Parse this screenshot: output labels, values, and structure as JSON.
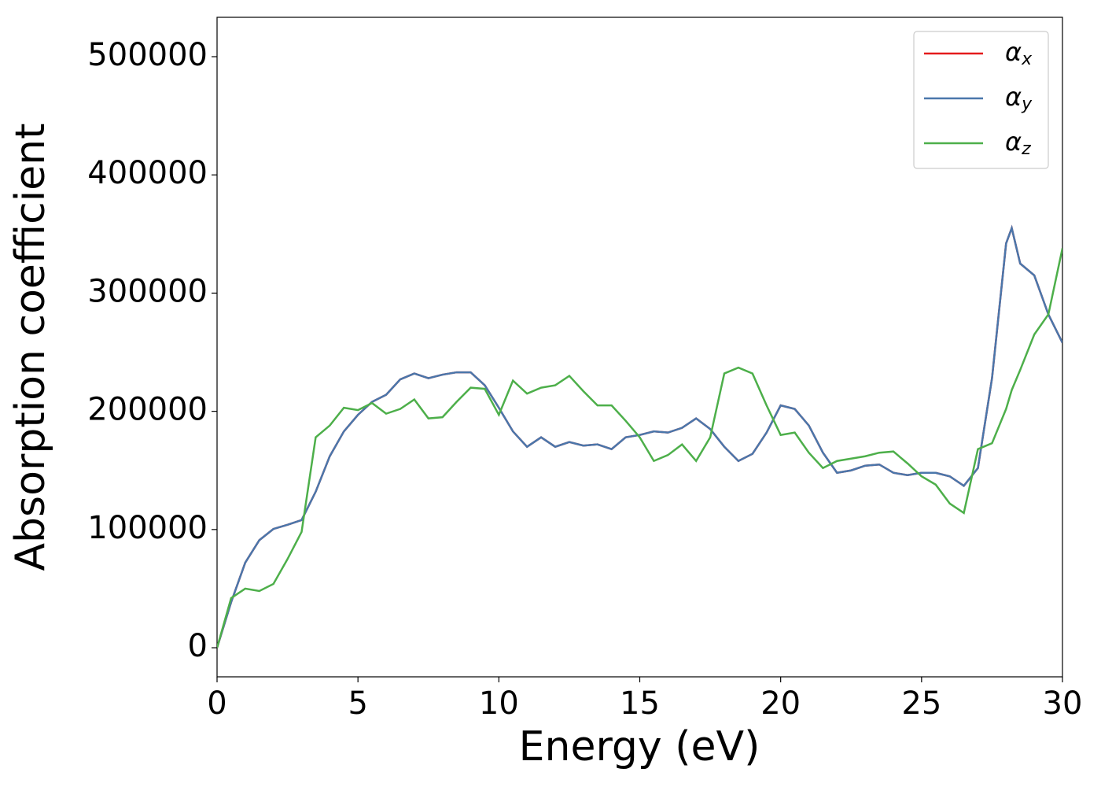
{
  "chart_data": {
    "type": "line",
    "xlabel": "Energy (eV)",
    "ylabel": "Absorption coefficient",
    "x": [
      0,
      0.5,
      1,
      1.5,
      2,
      2.5,
      3,
      3.5,
      4,
      4.5,
      5,
      5.5,
      6,
      6.5,
      7,
      7.5,
      8,
      8.5,
      9,
      9.5,
      10,
      10.5,
      11,
      11.5,
      12,
      12.5,
      13,
      13.5,
      14,
      14.5,
      15,
      15.5,
      16,
      16.5,
      17,
      17.5,
      18,
      18.5,
      19,
      19.5,
      20,
      20.5,
      21,
      21.5,
      22,
      22.5,
      23,
      23.5,
      24,
      24.5,
      25,
      25.5,
      26,
      26.5,
      27,
      27.5,
      28,
      28.2,
      28.5,
      29,
      29.5,
      30
    ],
    "series": [
      {
        "name": "αx",
        "color": "#e41a1c",
        "values": [
          0,
          38600,
          72000,
          91000,
          100500,
          104000,
          108000,
          132000,
          162000,
          183000,
          197000,
          208000,
          214000,
          227000,
          232000,
          228000,
          231000,
          233000,
          233000,
          222000,
          203000,
          183000,
          170000,
          178000,
          170000,
          174000,
          171000,
          172000,
          168000,
          178000,
          180000,
          183000,
          182000,
          186000,
          194000,
          185000,
          170000,
          158000,
          164000,
          182000,
          205000,
          202000,
          188000,
          165000,
          148000,
          150000,
          154000,
          155000,
          148000,
          146000,
          148000,
          148000,
          145000,
          137000,
          152000,
          228000,
          342000,
          355000,
          325000,
          315000,
          282000,
          258000
        ]
      },
      {
        "name": "αy",
        "color": "#4a77ab",
        "values": [
          0,
          38600,
          72000,
          91000,
          100500,
          104000,
          108000,
          132000,
          162000,
          183000,
          197000,
          208000,
          214000,
          227000,
          232000,
          228000,
          231000,
          233000,
          233000,
          222000,
          203000,
          183000,
          170000,
          178000,
          170000,
          174000,
          171000,
          172000,
          168000,
          178000,
          180000,
          183000,
          182000,
          186000,
          194000,
          185000,
          170000,
          158000,
          164000,
          182000,
          205000,
          202000,
          188000,
          165000,
          148000,
          150000,
          154000,
          155000,
          148000,
          146000,
          148000,
          148000,
          145000,
          137000,
          152000,
          228000,
          342000,
          355000,
          325000,
          315000,
          282000,
          258000
        ]
      },
      {
        "name": "αz",
        "color": "#4daf4a",
        "values": [
          0,
          42000,
          50000,
          48000,
          54000,
          75000,
          98000,
          178000,
          188000,
          203000,
          201000,
          207000,
          198000,
          202000,
          210000,
          194000,
          195000,
          208000,
          220000,
          219000,
          197000,
          226000,
          215000,
          220000,
          222000,
          230000,
          217000,
          205000,
          205000,
          192000,
          178000,
          158000,
          163000,
          172000,
          158000,
          178000,
          232000,
          237000,
          232000,
          205000,
          180000,
          182000,
          165000,
          152000,
          158000,
          160000,
          162000,
          165000,
          166000,
          156000,
          145000,
          138000,
          122000,
          114000,
          168000,
          173000,
          202000,
          218000,
          235000,
          265000,
          282000,
          338000
        ]
      }
    ],
    "xlim": [
      0,
      30
    ],
    "xticks": [
      0,
      5,
      10,
      15,
      20,
      25,
      30
    ],
    "ylim": [
      -24600,
      533300
    ],
    "yticks": [
      0,
      100000,
      200000,
      300000,
      400000,
      500000
    ],
    "grid": false,
    "legend": "upper right"
  }
}
